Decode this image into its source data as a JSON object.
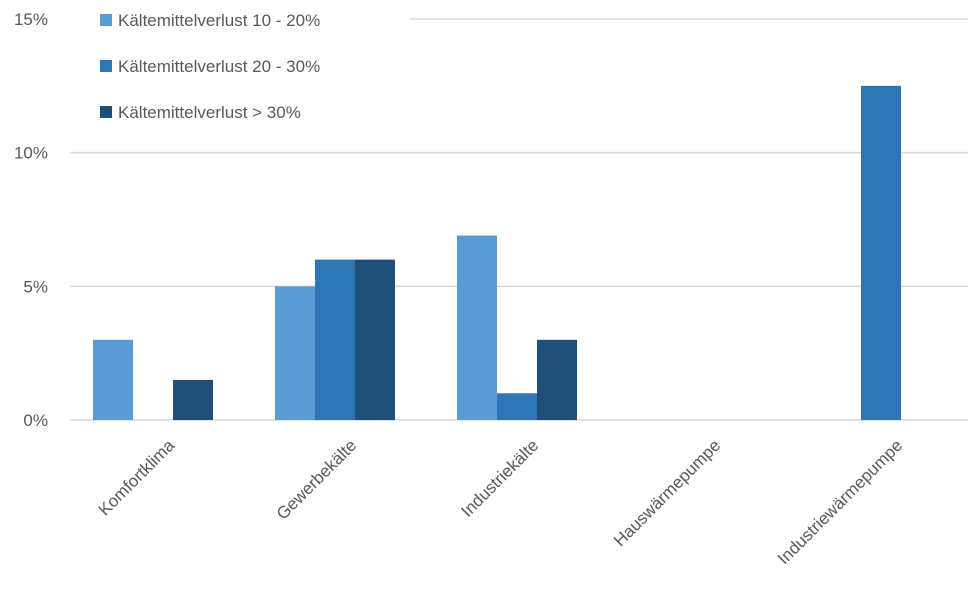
{
  "chart_data": {
    "type": "bar",
    "categories": [
      "Komfortklima",
      "Gewerbekälte",
      "Industriekälte",
      "Hauswärmepumpe",
      "Industriewärmepumpe"
    ],
    "series": [
      {
        "name": "Kältemittelverlust 10 - 20%",
        "color": "#5b9bd5",
        "values": [
          3.0,
          5.0,
          6.9,
          0,
          0
        ]
      },
      {
        "name": "Kältemittelverlust 20 - 30%",
        "color": "#2e75b6",
        "values": [
          0,
          6.0,
          1.0,
          0,
          12.5
        ]
      },
      {
        "name": "Kältemittelverlust > 30%",
        "color": "#1f4e79",
        "values": [
          1.5,
          6.0,
          3.0,
          0,
          0
        ]
      }
    ],
    "ylim": [
      0,
      15
    ],
    "yticks": [
      0,
      5,
      10,
      15
    ],
    "ytick_labels": [
      "0%",
      "5%",
      "10%",
      "15%"
    ],
    "grid": true,
    "legend_position": "top-left"
  }
}
